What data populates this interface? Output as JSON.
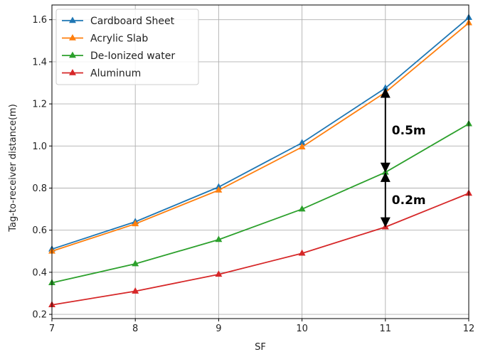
{
  "chart_data": {
    "type": "line",
    "title": "",
    "xlabel": "SF",
    "ylabel": "Tag-to-receiver distance(m)",
    "x": [
      7,
      8,
      9,
      10,
      11,
      12
    ],
    "xlim": [
      7,
      12
    ],
    "ylim": [
      0.18,
      1.67
    ],
    "xticks": [
      "7",
      "8",
      "9",
      "10",
      "11",
      "12"
    ],
    "yticks": [
      "0.2",
      "0.4",
      "0.6",
      "0.8",
      "1.0",
      "1.2",
      "1.4",
      "1.6"
    ],
    "grid": true,
    "legend_position": "upper-left",
    "marker": "triangle",
    "series": [
      {
        "name": "Cardboard Sheet",
        "color": "#1f77b4",
        "values": [
          0.51,
          0.64,
          0.805,
          1.015,
          1.275,
          1.61
        ]
      },
      {
        "name": "Acrylic Slab",
        "color": "#ff7f0e",
        "values": [
          0.5,
          0.63,
          0.79,
          0.995,
          1.255,
          1.585
        ]
      },
      {
        "name": "De-Ionized water",
        "color": "#2ca02c",
        "values": [
          0.35,
          0.44,
          0.555,
          0.7,
          0.875,
          1.105
        ]
      },
      {
        "name": "Aluminum",
        "color": "#d62728",
        "values": [
          0.245,
          0.31,
          0.39,
          0.49,
          0.615,
          0.775
        ]
      }
    ],
    "annotations": [
      {
        "text": "0.5m",
        "x": 11,
        "y_from": 1.275,
        "y_to": 0.875,
        "style": "double-arrow"
      },
      {
        "text": "0.2m",
        "x": 11,
        "y_from": 0.875,
        "y_to": 0.615,
        "style": "double-arrow"
      }
    ]
  }
}
